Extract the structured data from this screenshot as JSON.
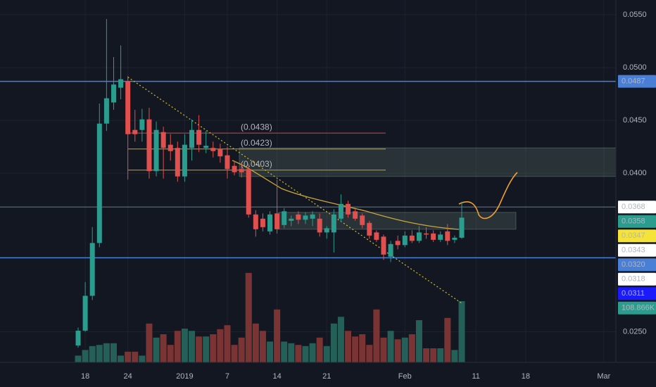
{
  "chart_data": {
    "type": "candlestick",
    "x": [
      -1,
      0,
      1,
      2,
      3,
      4,
      5,
      6,
      7,
      8,
      9,
      10,
      11,
      12,
      13,
      14,
      15,
      16,
      17,
      18,
      19,
      20,
      21,
      22,
      23,
      24,
      25,
      26,
      27,
      28,
      29,
      30,
      31,
      32,
      33,
      34,
      35,
      36,
      37,
      38,
      39,
      40,
      41,
      42,
      43,
      44,
      45,
      46,
      47,
      48,
      49,
      50,
      51,
      52,
      53
    ],
    "open": [
      0.0237,
      0.0251,
      0.0284,
      0.0334,
      0.0447,
      0.0467,
      0.0481,
      0.0487,
      0.0441,
      0.0441,
      0.0451,
      0.0402,
      0.0439,
      0.0427,
      0.0424,
      0.0397,
      0.0424,
      0.0441,
      0.0424,
      0.0424,
      0.0423,
      0.0417,
      0.0407,
      0.0404,
      0.0404,
      0.0361,
      0.0357,
      0.0345,
      0.0362,
      0.0351,
      0.0355,
      0.0361,
      0.0356,
      0.0357,
      0.0357,
      0.0344,
      0.0344,
      0.0357,
      0.0371,
      0.0364,
      0.036,
      0.0353,
      0.0344,
      0.034,
      0.0321,
      0.0336,
      0.0332,
      0.0341,
      0.0336,
      0.0343,
      0.0343,
      0.0337,
      0.0345,
      0.0337,
      0.0339
    ],
    "high": [
      0.0254,
      0.0297,
      0.0349,
      0.0466,
      0.0546,
      0.051,
      0.0521,
      0.0492,
      0.046,
      0.0461,
      0.0462,
      0.0449,
      0.0444,
      0.0437,
      0.043,
      0.0437,
      0.0451,
      0.0455,
      0.044,
      0.043,
      0.0428,
      0.0425,
      0.0412,
      0.041,
      0.0409,
      0.0365,
      0.0362,
      0.0364,
      0.0394,
      0.0367,
      0.036,
      0.0364,
      0.0363,
      0.0364,
      0.0362,
      0.035,
      0.0366,
      0.038,
      0.0374,
      0.0366,
      0.0362,
      0.0355,
      0.0346,
      0.0342,
      0.0336,
      0.0341,
      0.0345,
      0.0346,
      0.035,
      0.0349,
      0.0346,
      0.0345,
      0.0352,
      0.0341,
      0.0373
    ],
    "low": [
      0.0235,
      0.025,
      0.028,
      0.033,
      0.044,
      0.046,
      0.047,
      0.0394,
      0.043,
      0.043,
      0.0395,
      0.0397,
      0.0395,
      0.0412,
      0.0392,
      0.0392,
      0.0412,
      0.042,
      0.0419,
      0.0415,
      0.041,
      0.0395,
      0.0398,
      0.0396,
      0.0358,
      0.034,
      0.0345,
      0.0342,
      0.0343,
      0.0348,
      0.035,
      0.0352,
      0.0352,
      0.035,
      0.034,
      0.0338,
      0.0325,
      0.0354,
      0.0358,
      0.0355,
      0.0348,
      0.0338,
      0.0335,
      0.0318,
      0.0316,
      0.0328,
      0.033,
      0.0334,
      0.0334,
      0.0338,
      0.0335,
      0.0335,
      0.0332,
      0.0334,
      0.0338
    ],
    "close": [
      0.0251,
      0.0284,
      0.0334,
      0.0447,
      0.0471,
      0.0484,
      0.0489,
      0.0437,
      0.0437,
      0.0451,
      0.0402,
      0.0441,
      0.0424,
      0.0421,
      0.0397,
      0.0427,
      0.0441,
      0.0427,
      0.0426,
      0.0421,
      0.0416,
      0.0404,
      0.0401,
      0.0401,
      0.0361,
      0.0347,
      0.0349,
      0.0361,
      0.0347,
      0.0364,
      0.0357,
      0.0356,
      0.036,
      0.0361,
      0.0344,
      0.0348,
      0.0361,
      0.0371,
      0.0361,
      0.0357,
      0.0351,
      0.0341,
      0.0337,
      0.0323,
      0.0333,
      0.0332,
      0.0341,
      0.0336,
      0.0344,
      0.0342,
      0.0337,
      0.0342,
      0.0336,
      0.0339,
      0.0358
    ],
    "volume": [
      12,
      22,
      29,
      31,
      34,
      34,
      12,
      19,
      19,
      12,
      69,
      44,
      50,
      31,
      56,
      60,
      56,
      46,
      46,
      50,
      59,
      66,
      31,
      44,
      159,
      69,
      56,
      37,
      94,
      37,
      34,
      31,
      29,
      34,
      44,
      29,
      69,
      81,
      56,
      46,
      50,
      31,
      94,
      44,
      56,
      41,
      44,
      50,
      75,
      25,
      25,
      25,
      79,
      22,
      108.866
    ],
    "up_color": "#2a9d8f",
    "down_color": "#e0504e",
    "volume_up_color": "#245f58",
    "volume_down_color": "#7b3434",
    "xlim": [
      -12,
      74.7
    ],
    "ylim": [
      0.0221,
      0.0564
    ],
    "volume_lim": [
      0,
      644
    ],
    "xticks": [
      {
        "value": 0,
        "label": "18"
      },
      {
        "value": 6,
        "label": "24"
      },
      {
        "value": 14,
        "label": "2019"
      },
      {
        "value": 20,
        "label": "7"
      },
      {
        "value": 27,
        "label": "14"
      },
      {
        "value": 34,
        "label": "21"
      },
      {
        "value": 45,
        "label": "Feb"
      },
      {
        "value": 55,
        "label": "11"
      },
      {
        "value": 62,
        "label": "18"
      },
      {
        "value": 73,
        "label": "Mar"
      }
    ],
    "yticks": [
      {
        "value": 0.025,
        "label": "0.0250"
      },
      {
        "value": 0.04,
        "label": "0.0400"
      },
      {
        "value": 0.045,
        "label": "0.0450"
      },
      {
        "value": 0.05,
        "label": "0.0500"
      },
      {
        "value": 0.055,
        "label": "0.0550"
      }
    ],
    "grid": true,
    "hlines": [
      {
        "value": 0.0487,
        "color": "#4a7fd6"
      },
      {
        "value": 0.032,
        "color": "#4a7fd6"
      },
      {
        "value": 0.0368,
        "color": "#4f5966"
      }
    ],
    "zones": [
      [
        0.0424,
        0.0397
      ],
      [
        0.0363,
        0.0347
      ]
    ],
    "fib_levels": [
      {
        "value": 0.0438,
        "label": "(0.0438)",
        "color": "#c94c4c"
      },
      {
        "value": 0.0423,
        "label": "(0.0423)",
        "color": "#d4a017"
      },
      {
        "value": 0.0403,
        "label": "(0.0403)",
        "color": "#d4a017"
      }
    ],
    "trendline": {
      "x": [
        6,
        53
      ],
      "y": [
        0.0491,
        0.0277
      ],
      "color": "#d4c020"
    },
    "price_tags": [
      {
        "value": 0.0487,
        "label": "0.0487",
        "bg": "#4a7fd6",
        "fg": "#ffffff"
      },
      {
        "value": 0.0368,
        "label": "0.0368",
        "bg": "#ffffff",
        "fg": "#131722"
      },
      {
        "value": 0.0358,
        "label": "0.0358",
        "bg": "#2a9d8f",
        "fg": "#ffffff"
      },
      {
        "value": 0.0347,
        "label": "0.0347",
        "bg": "#f5e33a",
        "fg": "#131722"
      },
      {
        "value": 0.0343,
        "label": "0.0343",
        "bg": "#ffffff",
        "fg": "#131722"
      },
      {
        "value": 0.032,
        "label": "0.0320",
        "bg": "#4a7fd6",
        "fg": "#ffffff"
      },
      {
        "value": 0.0318,
        "label": "0.0318",
        "bg": "#ffffff",
        "fg": "#131722"
      },
      {
        "value": 0.0311,
        "label": "0.0311",
        "bg": "#1a1aff",
        "fg": "#ffffff"
      },
      {
        "value": 108.866,
        "label": "108.866K",
        "bg": "#2a9d8f",
        "fg": "#ffffff",
        "axis": "volume"
      }
    ]
  }
}
